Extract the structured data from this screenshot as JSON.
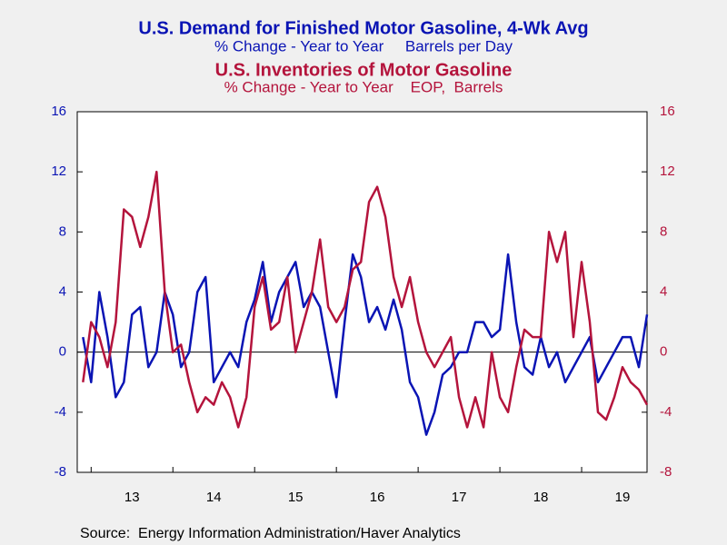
{
  "chart_data": {
    "type": "line",
    "series": [
      {
        "name": "U.S. Demand for Finished Motor Gasoline, 4-Wk Avg",
        "units": "% Change - Year to Year     Barrels per Day",
        "color": "#0a14b4",
        "axis": "y",
        "values": [
          1,
          -2,
          4,
          1,
          -3,
          -2,
          2.5,
          3,
          -1,
          0,
          4,
          2.5,
          -1,
          0,
          4,
          5,
          -2,
          -1,
          0,
          -1,
          2,
          3.5,
          6,
          2,
          4,
          5,
          6,
          3,
          4,
          3,
          0,
          -3,
          2,
          6.5,
          5,
          2,
          3,
          1.5,
          3.5,
          1.5,
          -2,
          -3,
          -5.5,
          -4,
          -1.5,
          -1,
          0,
          0,
          2,
          2,
          1,
          1.5,
          6.5,
          2,
          -1,
          -1.5,
          1,
          -1,
          0,
          -2,
          -1,
          0,
          1,
          -2,
          -1,
          0,
          1,
          1,
          -1,
          2.5
        ]
      },
      {
        "name": "U.S. Inventories of Motor Gasoline",
        "units": "% Change - Year to Year    EOP,  Barrels",
        "color": "#b4143c",
        "axis": "y2",
        "values": [
          -2,
          2,
          1,
          -1,
          2,
          9.5,
          9,
          7,
          9,
          12,
          4,
          0,
          0.5,
          -2,
          -4,
          -3,
          -3.5,
          -2,
          -3,
          -5,
          -3,
          3,
          5,
          1.5,
          2,
          5,
          0,
          2,
          4,
          7.5,
          3,
          2,
          3,
          5.5,
          6,
          10,
          11,
          9,
          5,
          3,
          5,
          2,
          0,
          -1,
          0,
          1,
          -3,
          -5,
          -3,
          -5,
          0,
          -3,
          -4,
          -1,
          1.5,
          1,
          1,
          8,
          6,
          8,
          1,
          6,
          2,
          -4,
          -4.5,
          -3,
          -1,
          -2,
          -2.5,
          -3.5
        ]
      }
    ],
    "x": [
      2012.9,
      2013.0,
      2013.1,
      2013.2,
      2013.3,
      2013.4,
      2013.5,
      2013.6,
      2013.7,
      2013.8,
      2013.9,
      2014.0,
      2014.1,
      2014.2,
      2014.3,
      2014.4,
      2014.5,
      2014.6,
      2014.7,
      2014.8,
      2014.9,
      2015.0,
      2015.1,
      2015.2,
      2015.3,
      2015.4,
      2015.5,
      2015.6,
      2015.7,
      2015.8,
      2015.9,
      2016.0,
      2016.1,
      2016.2,
      2016.3,
      2016.4,
      2016.5,
      2016.6,
      2016.7,
      2016.8,
      2016.9,
      2017.0,
      2017.1,
      2017.2,
      2017.3,
      2017.4,
      2017.5,
      2017.6,
      2017.7,
      2017.8,
      2017.9,
      2018.0,
      2018.1,
      2018.2,
      2018.3,
      2018.4,
      2018.5,
      2018.6,
      2018.7,
      2018.8,
      2018.9,
      2019.0,
      2019.1,
      2019.2,
      2019.3,
      2019.4,
      2019.5,
      2019.6,
      2019.7,
      2019.8
    ],
    "xlim": [
      2012.83,
      2019.8
    ],
    "xticks": [
      2013,
      2014,
      2015,
      2016,
      2017,
      2018,
      2019
    ],
    "xtick_labels": [
      {
        "value": 2013.5,
        "label": "13"
      },
      {
        "value": 2014.5,
        "label": "14"
      },
      {
        "value": 2015.5,
        "label": "15"
      },
      {
        "value": 2016.5,
        "label": "16"
      },
      {
        "value": 2017.5,
        "label": "17"
      },
      {
        "value": 2018.5,
        "label": "18"
      },
      {
        "value": 2019.5,
        "label": "19"
      }
    ],
    "ylim": [
      -8,
      16
    ],
    "yticks": [
      -8,
      -4,
      0,
      4,
      8,
      12,
      16
    ],
    "y2lim": [
      -8,
      16
    ],
    "y2ticks": [
      -8,
      -4,
      0,
      4,
      8,
      12,
      16
    ],
    "zero_line": true,
    "source": "Source:  Energy Information Administration/Haver Analytics"
  }
}
